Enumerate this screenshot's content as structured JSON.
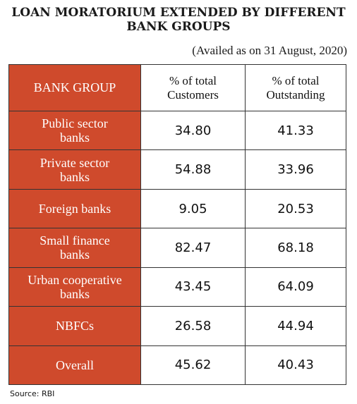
{
  "title_line1": "LOAN MORATORIUM EXTENDED BY DIFFERENT",
  "title_line2": "BANK GROUPS",
  "subtitle": "(Availed as on 31 August, 2020)",
  "source": "Source: RBI",
  "colors": {
    "accent": "#cf4a2c",
    "border": "#333333"
  },
  "chart_data": {
    "type": "table",
    "title": "LOAN MORATORIUM EXTENDED BY DIFFERENT BANK GROUPS",
    "subtitle": "(Availed as on 31 August, 2020)",
    "columns": [
      "BANK GROUP",
      "% of total Customers",
      "% of total Outstanding"
    ],
    "column_lines": [
      [
        "BANK GROUP"
      ],
      [
        "% of total",
        "Customers"
      ],
      [
        "% of total",
        "Outstanding"
      ]
    ],
    "rows": [
      {
        "group_lines": [
          "Public sector",
          "banks"
        ],
        "customers": "34.80",
        "outstanding": "41.33"
      },
      {
        "group_lines": [
          "Private sector",
          "banks"
        ],
        "customers": "54.88",
        "outstanding": "33.96"
      },
      {
        "group_lines": [
          "Foreign banks"
        ],
        "customers": "9.05",
        "outstanding": "20.53"
      },
      {
        "group_lines": [
          "Small finance",
          "banks"
        ],
        "customers": "82.47",
        "outstanding": "68.18"
      },
      {
        "group_lines": [
          "Urban  cooperative",
          "banks"
        ],
        "customers": "43.45",
        "outstanding": "64.09"
      },
      {
        "group_lines": [
          "NBFCs"
        ],
        "customers": "26.58",
        "outstanding": "44.94"
      },
      {
        "group_lines": [
          "Overall"
        ],
        "customers": "45.62",
        "outstanding": "40.43"
      }
    ]
  }
}
